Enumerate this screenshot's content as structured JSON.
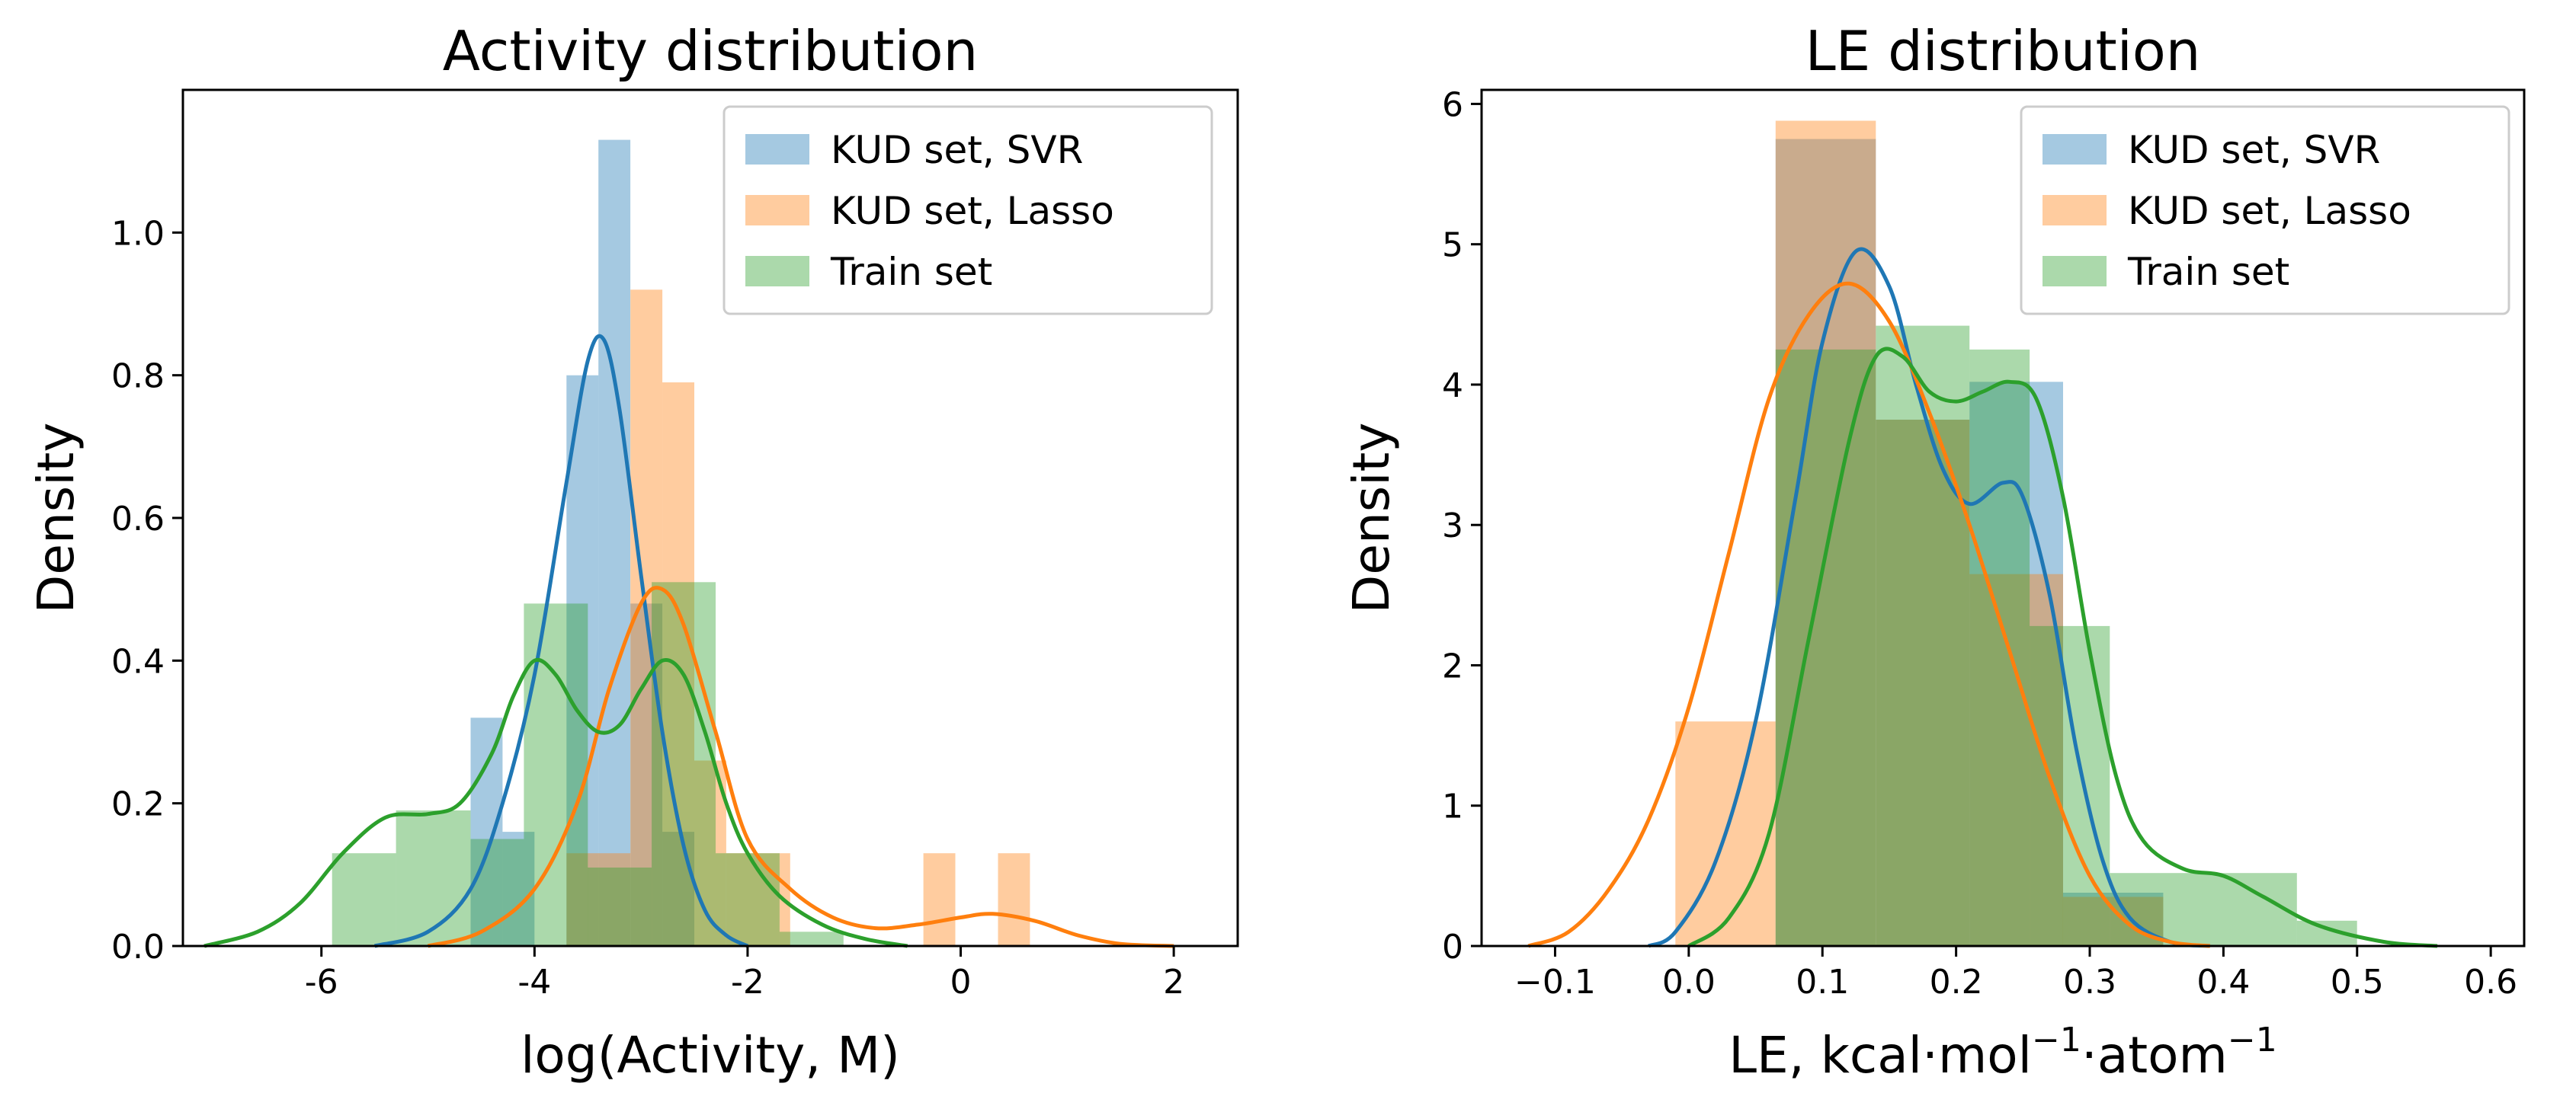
{
  "chart_data": [
    {
      "type": "histogram+kde",
      "title": "Activity distribution",
      "xlabel": "log(Activity, M)",
      "ylabel": "Density",
      "xlim": [
        -7.3,
        2.6
      ],
      "ylim": [
        0,
        1.2
      ],
      "xticks": [
        -6,
        -4,
        -2,
        0,
        2
      ],
      "yticks": [
        0.0,
        0.2,
        0.4,
        0.6,
        0.8,
        1.0
      ],
      "ytick_labels": [
        "0.0",
        "0.2",
        "0.4",
        "0.6",
        "0.8",
        "1.0"
      ],
      "legend_position": "upper right",
      "series": [
        {
          "name": "KUD set, SVR",
          "color": "#1f77b4",
          "bins": [
            {
              "x0": -4.6,
              "x1": -4.3,
              "h": 0.32
            },
            {
              "x0": -4.3,
              "x1": -4.0,
              "h": 0.16
            },
            {
              "x0": -4.0,
              "x1": -3.7,
              "h": 0.0
            },
            {
              "x0": -3.7,
              "x1": -3.4,
              "h": 0.8
            },
            {
              "x0": -3.4,
              "x1": -3.1,
              "h": 1.13
            },
            {
              "x0": -3.1,
              "x1": -2.8,
              "h": 0.48
            },
            {
              "x0": -2.8,
              "x1": -2.5,
              "h": 0.16
            }
          ],
          "kde": [
            [
              -5.5,
              0.0
            ],
            [
              -5.0,
              0.02
            ],
            [
              -4.6,
              0.08
            ],
            [
              -4.3,
              0.2
            ],
            [
              -4.0,
              0.38
            ],
            [
              -3.7,
              0.65
            ],
            [
              -3.5,
              0.82
            ],
            [
              -3.35,
              0.85
            ],
            [
              -3.2,
              0.75
            ],
            [
              -3.0,
              0.52
            ],
            [
              -2.8,
              0.3
            ],
            [
              -2.6,
              0.14
            ],
            [
              -2.4,
              0.05
            ],
            [
              -2.2,
              0.015
            ],
            [
              -2.0,
              0.0
            ]
          ]
        },
        {
          "name": "KUD set, Lasso",
          "color": "#ff7f0e",
          "bins": [
            {
              "x0": -3.7,
              "x1": -3.1,
              "h": 0.13
            },
            {
              "x0": -3.1,
              "x1": -2.8,
              "h": 0.92
            },
            {
              "x0": -2.8,
              "x1": -2.5,
              "h": 0.79
            },
            {
              "x0": -2.5,
              "x1": -2.2,
              "h": 0.26
            },
            {
              "x0": -2.2,
              "x1": -1.9,
              "h": 0.13
            },
            {
              "x0": -1.9,
              "x1": -1.6,
              "h": 0.13
            },
            {
              "x0": -0.35,
              "x1": -0.05,
              "h": 0.13
            },
            {
              "x0": 0.35,
              "x1": 0.65,
              "h": 0.13
            }
          ],
          "kde": [
            [
              -5.0,
              0.0
            ],
            [
              -4.5,
              0.02
            ],
            [
              -4.0,
              0.08
            ],
            [
              -3.6,
              0.2
            ],
            [
              -3.3,
              0.36
            ],
            [
              -3.0,
              0.48
            ],
            [
              -2.8,
              0.5
            ],
            [
              -2.6,
              0.45
            ],
            [
              -2.3,
              0.3
            ],
            [
              -2.0,
              0.15
            ],
            [
              -1.6,
              0.08
            ],
            [
              -1.2,
              0.04
            ],
            [
              -0.8,
              0.025
            ],
            [
              -0.4,
              0.03
            ],
            [
              0.0,
              0.04
            ],
            [
              0.3,
              0.045
            ],
            [
              0.7,
              0.035
            ],
            [
              1.1,
              0.015
            ],
            [
              1.5,
              0.003
            ],
            [
              2.0,
              0.0
            ]
          ]
        },
        {
          "name": "Train set",
          "color": "#2ca02c",
          "bins": [
            {
              "x0": -5.9,
              "x1": -5.3,
              "h": 0.13
            },
            {
              "x0": -5.3,
              "x1": -4.6,
              "h": 0.19
            },
            {
              "x0": -4.6,
              "x1": -4.1,
              "h": 0.15
            },
            {
              "x0": -4.1,
              "x1": -3.5,
              "h": 0.48
            },
            {
              "x0": -3.5,
              "x1": -2.9,
              "h": 0.11
            },
            {
              "x0": -2.9,
              "x1": -2.3,
              "h": 0.51
            },
            {
              "x0": -2.3,
              "x1": -1.7,
              "h": 0.13
            },
            {
              "x0": -1.7,
              "x1": -1.1,
              "h": 0.02
            }
          ],
          "kde": [
            [
              -7.1,
              0.0
            ],
            [
              -6.6,
              0.02
            ],
            [
              -6.2,
              0.06
            ],
            [
              -5.8,
              0.13
            ],
            [
              -5.4,
              0.18
            ],
            [
              -5.0,
              0.185
            ],
            [
              -4.7,
              0.2
            ],
            [
              -4.4,
              0.27
            ],
            [
              -4.2,
              0.35
            ],
            [
              -4.0,
              0.4
            ],
            [
              -3.8,
              0.38
            ],
            [
              -3.6,
              0.33
            ],
            [
              -3.4,
              0.3
            ],
            [
              -3.2,
              0.31
            ],
            [
              -3.0,
              0.36
            ],
            [
              -2.8,
              0.4
            ],
            [
              -2.6,
              0.38
            ],
            [
              -2.4,
              0.3
            ],
            [
              -2.2,
              0.2
            ],
            [
              -2.0,
              0.13
            ],
            [
              -1.7,
              0.07
            ],
            [
              -1.3,
              0.03
            ],
            [
              -0.9,
              0.01
            ],
            [
              -0.5,
              0.0
            ]
          ]
        }
      ]
    },
    {
      "type": "histogram+kde",
      "title": "LE distribution",
      "xlabel": "LE, kcal·mol",
      "xlabel_sup1": "−1",
      "xlabel_mid": "·atom",
      "xlabel_sup2": "−1",
      "ylabel": "Density",
      "xlim": [
        -0.155,
        0.625
      ],
      "ylim": [
        0,
        6.1
      ],
      "xticks": [
        -0.1,
        0.0,
        0.1,
        0.2,
        0.3,
        0.4,
        0.5,
        0.6
      ],
      "xtick_labels": [
        "−0.1",
        "0.0",
        "0.1",
        "0.2",
        "0.3",
        "0.4",
        "0.5",
        "0.6"
      ],
      "yticks": [
        0,
        1,
        2,
        3,
        4,
        5,
        6
      ],
      "legend_position": "upper right",
      "series": [
        {
          "name": "KUD set, SVR",
          "color": "#1f77b4",
          "bins": [
            {
              "x0": 0.065,
              "x1": 0.14,
              "h": 5.75
            },
            {
              "x0": 0.14,
              "x1": 0.21,
              "h": 3.75
            },
            {
              "x0": 0.21,
              "x1": 0.28,
              "h": 4.02
            },
            {
              "x0": 0.28,
              "x1": 0.355,
              "h": 0.38
            }
          ],
          "kde": [
            [
              -0.03,
              0.0
            ],
            [
              -0.01,
              0.1
            ],
            [
              0.02,
              0.6
            ],
            [
              0.05,
              1.6
            ],
            [
              0.08,
              3.2
            ],
            [
              0.1,
              4.3
            ],
            [
              0.125,
              4.95
            ],
            [
              0.15,
              4.7
            ],
            [
              0.17,
              4.0
            ],
            [
              0.19,
              3.4
            ],
            [
              0.21,
              3.15
            ],
            [
              0.235,
              3.3
            ],
            [
              0.25,
              3.2
            ],
            [
              0.27,
              2.5
            ],
            [
              0.29,
              1.4
            ],
            [
              0.31,
              0.6
            ],
            [
              0.33,
              0.2
            ],
            [
              0.36,
              0.03
            ],
            [
              0.39,
              0.0
            ]
          ]
        },
        {
          "name": "KUD set, Lasso",
          "color": "#ff7f0e",
          "bins": [
            {
              "x0": -0.01,
              "x1": 0.065,
              "h": 1.6
            },
            {
              "x0": 0.065,
              "x1": 0.14,
              "h": 5.88
            },
            {
              "x0": 0.14,
              "x1": 0.21,
              "h": 3.75
            },
            {
              "x0": 0.21,
              "x1": 0.28,
              "h": 2.65
            },
            {
              "x0": 0.28,
              "x1": 0.355,
              "h": 0.35
            }
          ],
          "kde": [
            [
              -0.12,
              0.0
            ],
            [
              -0.09,
              0.1
            ],
            [
              -0.06,
              0.4
            ],
            [
              -0.03,
              0.9
            ],
            [
              0.0,
              1.7
            ],
            [
              0.03,
              2.8
            ],
            [
              0.06,
              3.9
            ],
            [
              0.09,
              4.5
            ],
            [
              0.12,
              4.72
            ],
            [
              0.15,
              4.45
            ],
            [
              0.18,
              3.8
            ],
            [
              0.21,
              3.0
            ],
            [
              0.24,
              2.1
            ],
            [
              0.27,
              1.2
            ],
            [
              0.3,
              0.5
            ],
            [
              0.33,
              0.15
            ],
            [
              0.36,
              0.03
            ],
            [
              0.39,
              0.0
            ]
          ]
        },
        {
          "name": "Train set",
          "color": "#2ca02c",
          "bins": [
            {
              "x0": 0.065,
              "x1": 0.14,
              "h": 4.25
            },
            {
              "x0": 0.14,
              "x1": 0.21,
              "h": 4.42
            },
            {
              "x0": 0.21,
              "x1": 0.255,
              "h": 4.25
            },
            {
              "x0": 0.255,
              "x1": 0.315,
              "h": 2.28
            },
            {
              "x0": 0.315,
              "x1": 0.365,
              "h": 0.52
            },
            {
              "x0": 0.365,
              "x1": 0.455,
              "h": 0.52
            },
            {
              "x0": 0.455,
              "x1": 0.5,
              "h": 0.18
            }
          ],
          "kde": [
            [
              0.0,
              0.0
            ],
            [
              0.03,
              0.2
            ],
            [
              0.06,
              0.8
            ],
            [
              0.09,
              2.2
            ],
            [
              0.12,
              3.6
            ],
            [
              0.14,
              4.2
            ],
            [
              0.16,
              4.2
            ],
            [
              0.18,
              3.95
            ],
            [
              0.2,
              3.88
            ],
            [
              0.22,
              3.95
            ],
            [
              0.24,
              4.02
            ],
            [
              0.26,
              3.9
            ],
            [
              0.28,
              3.2
            ],
            [
              0.3,
              2.1
            ],
            [
              0.32,
              1.2
            ],
            [
              0.34,
              0.75
            ],
            [
              0.37,
              0.55
            ],
            [
              0.4,
              0.5
            ],
            [
              0.43,
              0.35
            ],
            [
              0.47,
              0.15
            ],
            [
              0.52,
              0.03
            ],
            [
              0.56,
              0.0
            ]
          ]
        }
      ]
    }
  ]
}
